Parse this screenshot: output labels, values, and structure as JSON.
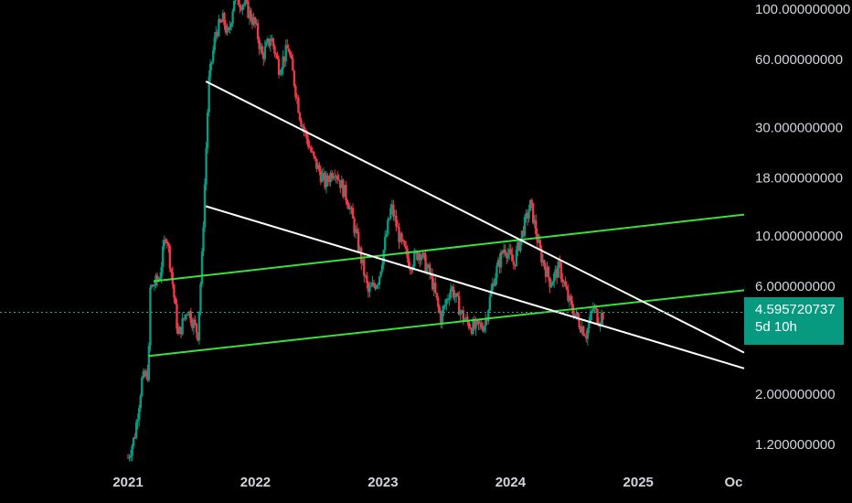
{
  "chart_data": {
    "type": "candlestick",
    "y_scale": "log",
    "ylim": [
      1.0,
      115
    ],
    "y_tick_labels": [
      "100.000000000",
      "60.000000000",
      "30.000000000",
      "18.000000000",
      "10.000000000",
      "6.000000000",
      "2.000000000",
      "1.200000000"
    ],
    "y_tick_values": [
      100,
      60,
      30,
      18,
      10,
      6,
      2,
      1.2
    ],
    "x_tick_labels": [
      "2021",
      "2022",
      "2023",
      "2024",
      "2025",
      "Oc"
    ],
    "x_tick_values": [
      "2021-01-01",
      "2022-01-01",
      "2023-01-01",
      "2024-01-01",
      "2025-01-01",
      "2025-10-01"
    ],
    "xlim": [
      "2020-12-28",
      "2025-11-01"
    ],
    "current_price": "4.595720737",
    "current_price_value": 4.5957,
    "countdown": "5d 10h",
    "colors": {
      "up": "#089981",
      "down": "#f23645",
      "support_lines": "#39e03a",
      "trend_lines": "#ffffff",
      "price_line": "#22ab94"
    },
    "price_path": [
      [
        "2021-01-01",
        1.05
      ],
      [
        "2021-01-20",
        1.3
      ],
      [
        "2021-02-10",
        2.3
      ],
      [
        "2021-03-01",
        2.5
      ],
      [
        "2021-03-05",
        5.8
      ],
      [
        "2021-04-01",
        6.5
      ],
      [
        "2021-04-20",
        10.5
      ],
      [
        "2021-05-05",
        7.0
      ],
      [
        "2021-05-25",
        3.6
      ],
      [
        "2021-06-20",
        4.8
      ],
      [
        "2021-07-20",
        3.7
      ],
      [
        "2021-08-01",
        8.0
      ],
      [
        "2021-08-20",
        47
      ],
      [
        "2021-09-10",
        80
      ],
      [
        "2021-10-01",
        90
      ],
      [
        "2021-10-15",
        75
      ],
      [
        "2021-11-01",
        112
      ],
      [
        "2021-12-01",
        105
      ],
      [
        "2022-01-01",
        85
      ],
      [
        "2022-01-20",
        62
      ],
      [
        "2022-02-15",
        75
      ],
      [
        "2022-03-10",
        55
      ],
      [
        "2022-04-05",
        68
      ],
      [
        "2022-05-10",
        33
      ],
      [
        "2022-06-15",
        22
      ],
      [
        "2022-07-20",
        17
      ],
      [
        "2022-08-15",
        20
      ],
      [
        "2022-09-25",
        14
      ],
      [
        "2022-10-20",
        9.5
      ],
      [
        "2022-11-20",
        5.6
      ],
      [
        "2022-12-20",
        6.5
      ],
      [
        "2023-01-25",
        13.5
      ],
      [
        "2023-02-20",
        9.5
      ],
      [
        "2023-03-20",
        7.5
      ],
      [
        "2023-04-15",
        8.6
      ],
      [
        "2023-05-20",
        6.5
      ],
      [
        "2023-06-15",
        4.3
      ],
      [
        "2023-07-15",
        6.0
      ],
      [
        "2023-08-20",
        4.3
      ],
      [
        "2023-09-20",
        3.9
      ],
      [
        "2023-10-20",
        4.1
      ],
      [
        "2023-11-15",
        6.5
      ],
      [
        "2023-12-15",
        9.0
      ],
      [
        "2024-01-10",
        7.5
      ],
      [
        "2024-02-05",
        10.5
      ],
      [
        "2024-02-28",
        13.8
      ],
      [
        "2024-03-25",
        8.5
      ],
      [
        "2024-04-25",
        6.2
      ],
      [
        "2024-05-20",
        7.3
      ],
      [
        "2024-06-15",
        5.2
      ],
      [
        "2024-07-10",
        4.3
      ],
      [
        "2024-08-05",
        3.7
      ],
      [
        "2024-08-25",
        4.8
      ],
      [
        "2024-09-10",
        4.3
      ],
      [
        "2024-09-25",
        4.6
      ]
    ],
    "lines": [
      {
        "kind": "support",
        "from": [
          "2021-03-15",
          6.3
        ],
        "to": [
          "2025-10-31",
          12.4
        ]
      },
      {
        "kind": "support",
        "from": [
          "2021-03-01",
          2.95
        ],
        "to": [
          "2025-10-31",
          5.75
        ]
      },
      {
        "kind": "trend",
        "from": [
          "2021-08-12",
          48
        ],
        "to": [
          "2025-10-31",
          3.05
        ]
      },
      {
        "kind": "trend",
        "from": [
          "2021-08-12",
          13.5
        ],
        "to": [
          "2025-10-31",
          2.6
        ]
      }
    ]
  }
}
